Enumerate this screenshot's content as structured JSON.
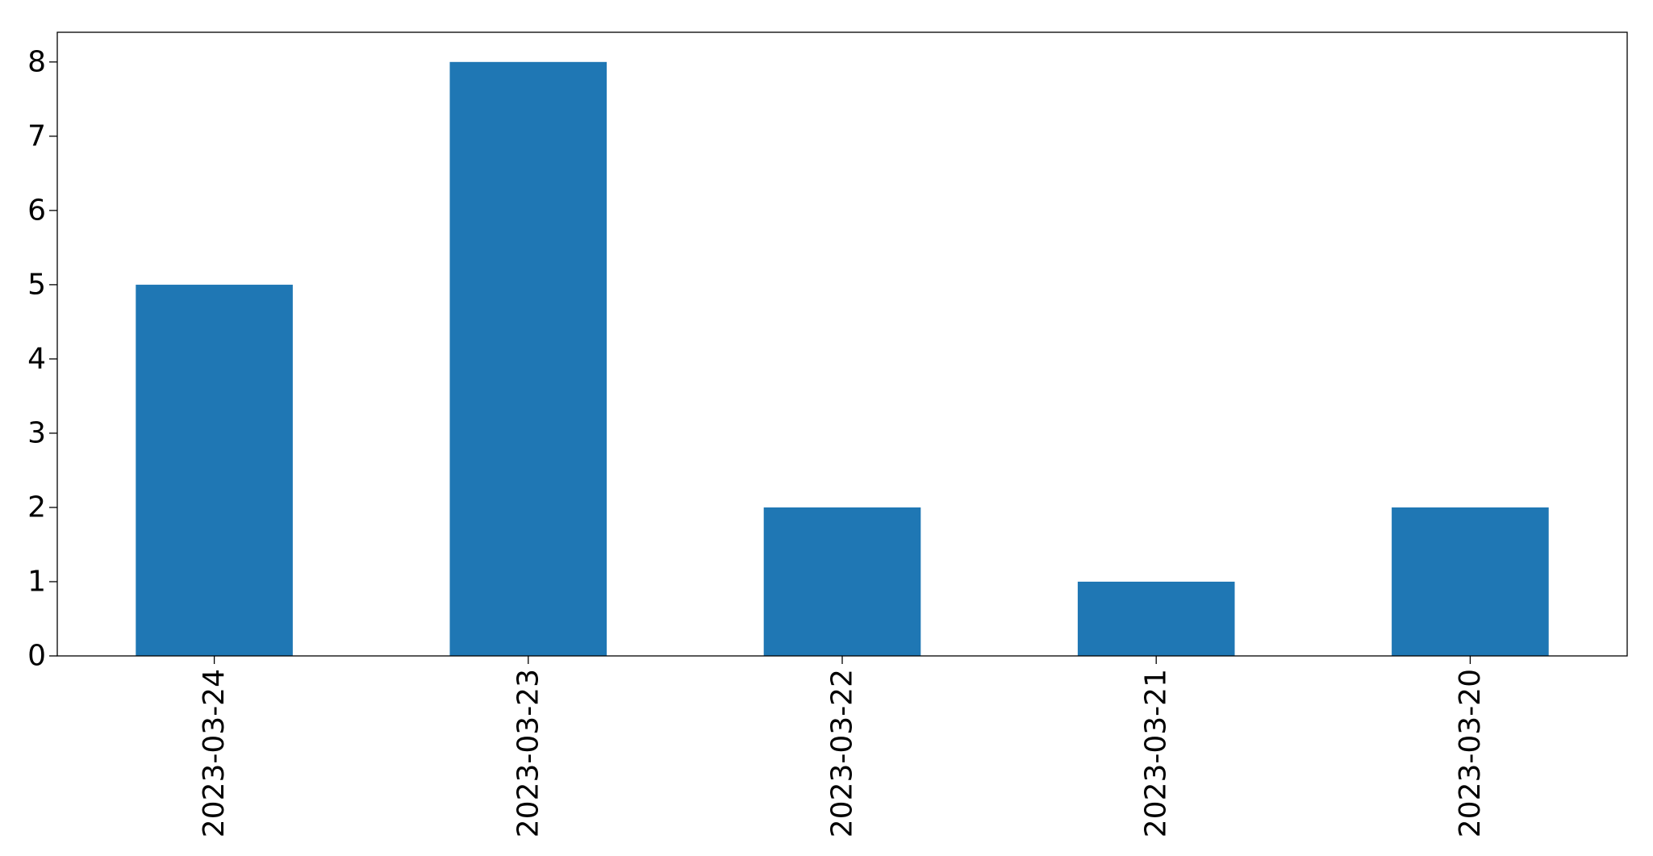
{
  "chart_data": {
    "type": "bar",
    "categories": [
      "2023-03-24",
      "2023-03-23",
      "2023-03-22",
      "2023-03-21",
      "2023-03-20"
    ],
    "values": [
      5,
      8,
      2,
      1,
      2
    ],
    "title": "",
    "xlabel": "",
    "ylabel": "",
    "ylim": [
      0,
      8.4
    ],
    "yticks": [
      0,
      1,
      2,
      3,
      4,
      5,
      6,
      7,
      8
    ],
    "bar_color": "#1f77b4",
    "grid": false,
    "legend": "none"
  }
}
